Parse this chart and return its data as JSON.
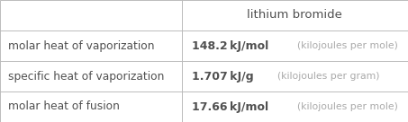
{
  "title": "lithium bromide",
  "rows": [
    {
      "label": "molar heat of vaporization",
      "value_bold": "148.2 kJ/mol",
      "value_light": "  (kilojoules per mole)"
    },
    {
      "label": "specific heat of vaporization",
      "value_bold": "1.707 kJ/g",
      "value_light": "  (kilojoules per gram)"
    },
    {
      "label": "molar heat of fusion",
      "value_bold": "17.66 kJ/mol",
      "value_light": "  (kilojoules per mole)"
    }
  ],
  "col_split": 0.445,
  "background_color": "#ffffff",
  "grid_color": "#bbbbbb",
  "text_color": "#505050",
  "title_fontsize": 9.5,
  "label_fontsize": 8.8,
  "value_fontsize": 9.0,
  "unit_fontsize": 7.8
}
